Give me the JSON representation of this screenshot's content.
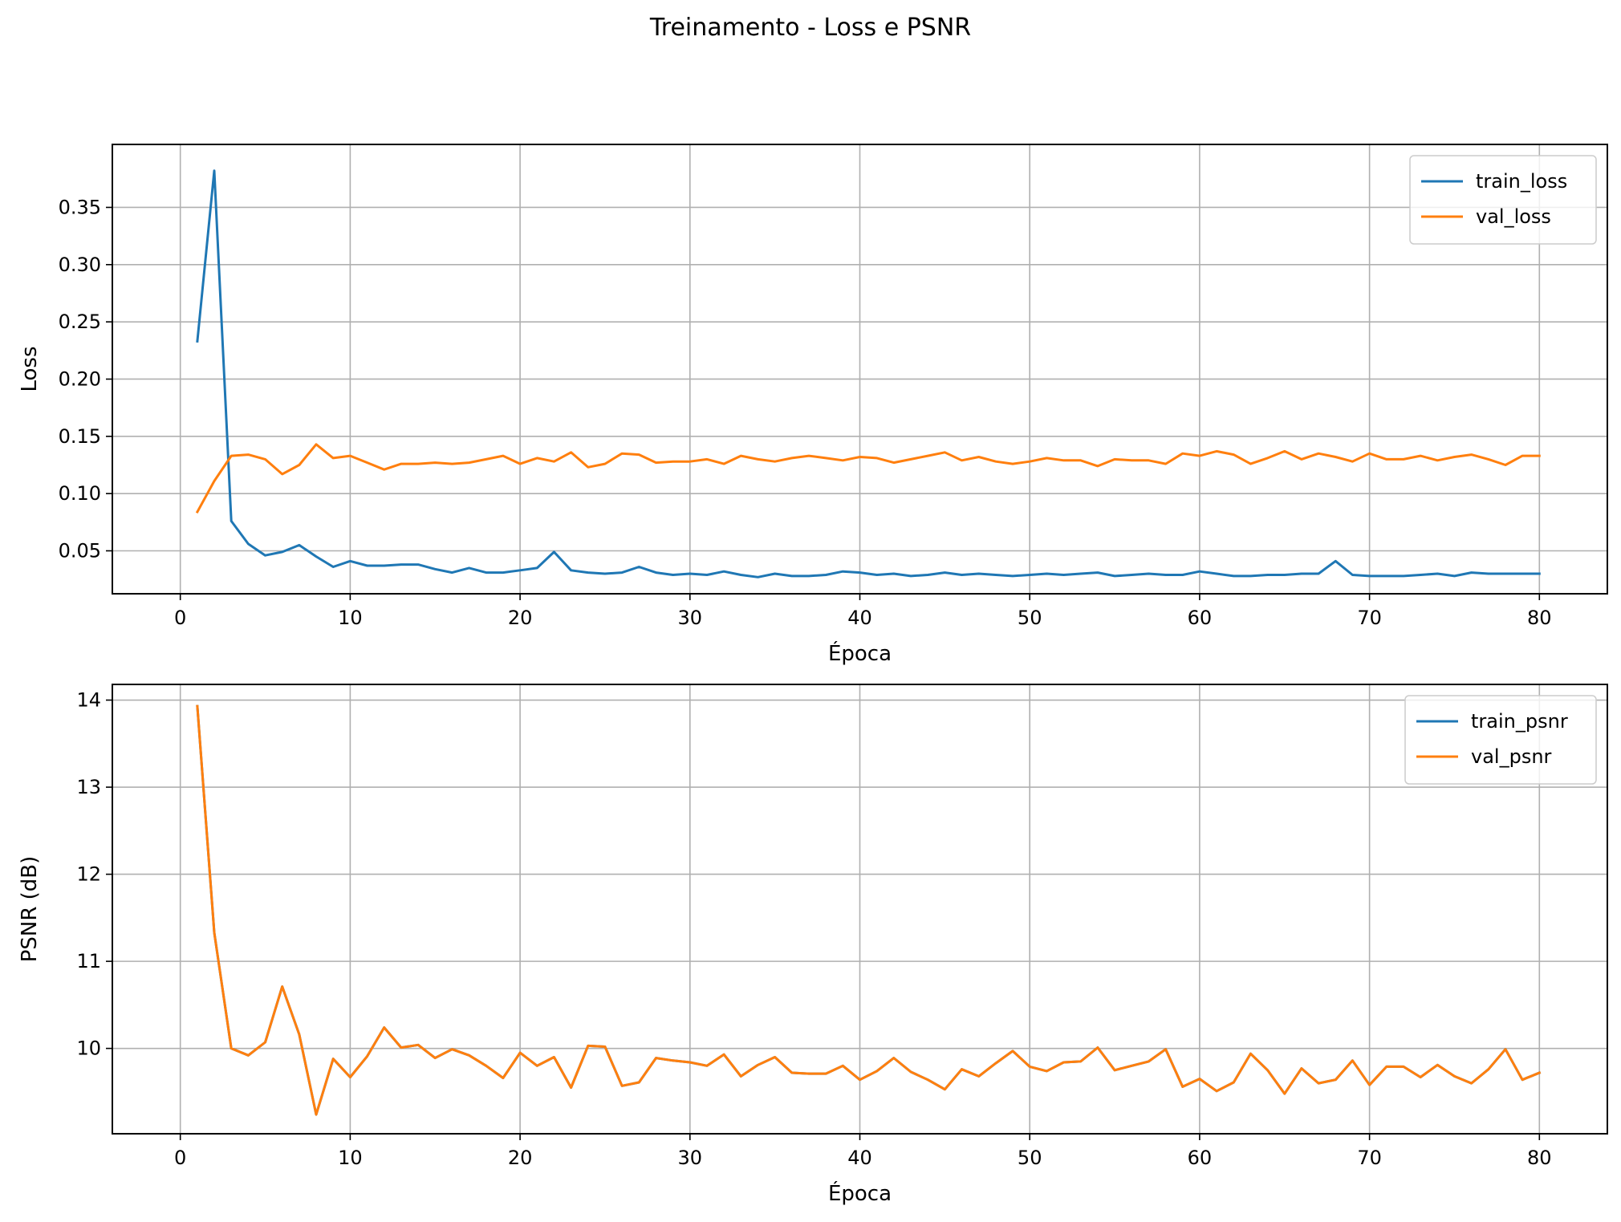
{
  "figure": {
    "title": "Treinamento - Loss e PSNR"
  },
  "colors": {
    "train": "#1f77b4",
    "val": "#ff7f0e"
  },
  "chart_data": [
    {
      "type": "line",
      "xlabel": "Época",
      "ylabel": "Loss",
      "xlim": [
        -4,
        84
      ],
      "ylim": [
        0.0125,
        0.405
      ],
      "xticks": [
        0,
        10,
        20,
        30,
        40,
        50,
        60,
        70,
        80
      ],
      "yticks": [
        0.05,
        0.1,
        0.15,
        0.2,
        0.25,
        0.3,
        0.35
      ],
      "ytick_labels": [
        "0.05",
        "0.10",
        "0.15",
        "0.20",
        "0.25",
        "0.30",
        "0.35"
      ],
      "grid": true,
      "legend": "top-right",
      "x": [
        1,
        2,
        3,
        4,
        5,
        6,
        7,
        8,
        9,
        10,
        11,
        12,
        13,
        14,
        15,
        16,
        17,
        18,
        19,
        20,
        21,
        22,
        23,
        24,
        25,
        26,
        27,
        28,
        29,
        30,
        31,
        32,
        33,
        34,
        35,
        36,
        37,
        38,
        39,
        40,
        41,
        42,
        43,
        44,
        45,
        46,
        47,
        48,
        49,
        50,
        51,
        52,
        53,
        54,
        55,
        56,
        57,
        58,
        59,
        60,
        61,
        62,
        63,
        64,
        65,
        66,
        67,
        68,
        69,
        70,
        71,
        72,
        73,
        74,
        75,
        76,
        77,
        78,
        79,
        80
      ],
      "series": [
        {
          "name": "train_loss",
          "color": "#1f77b4",
          "values": [
            0.233,
            0.382,
            0.076,
            0.056,
            0.046,
            0.049,
            0.055,
            0.045,
            0.036,
            0.041,
            0.037,
            0.037,
            0.038,
            0.038,
            0.034,
            0.031,
            0.035,
            0.031,
            0.031,
            0.033,
            0.035,
            0.049,
            0.033,
            0.031,
            0.03,
            0.031,
            0.036,
            0.031,
            0.029,
            0.03,
            0.029,
            0.032,
            0.029,
            0.027,
            0.03,
            0.028,
            0.028,
            0.029,
            0.032,
            0.031,
            0.029,
            0.03,
            0.028,
            0.029,
            0.031,
            0.029,
            0.03,
            0.029,
            0.028,
            0.029,
            0.03,
            0.029,
            0.03,
            0.031,
            0.028,
            0.029,
            0.03,
            0.029,
            0.029,
            0.032,
            0.03,
            0.028,
            0.028,
            0.029,
            0.029,
            0.03,
            0.03,
            0.041,
            0.029,
            0.028,
            0.028,
            0.028,
            0.029,
            0.03,
            0.028,
            0.031,
            0.03,
            0.03,
            0.03,
            0.03
          ]
        },
        {
          "name": "val_loss",
          "color": "#ff7f0e",
          "values": [
            0.084,
            0.111,
            0.133,
            0.134,
            0.13,
            0.117,
            0.125,
            0.143,
            0.131,
            0.133,
            0.127,
            0.121,
            0.126,
            0.126,
            0.127,
            0.126,
            0.127,
            0.13,
            0.133,
            0.126,
            0.131,
            0.128,
            0.136,
            0.123,
            0.126,
            0.135,
            0.134,
            0.127,
            0.128,
            0.128,
            0.13,
            0.126,
            0.133,
            0.13,
            0.128,
            0.131,
            0.133,
            0.131,
            0.129,
            0.132,
            0.131,
            0.127,
            0.13,
            0.133,
            0.136,
            0.129,
            0.132,
            0.128,
            0.126,
            0.128,
            0.131,
            0.129,
            0.129,
            0.124,
            0.13,
            0.129,
            0.129,
            0.126,
            0.135,
            0.133,
            0.137,
            0.134,
            0.126,
            0.131,
            0.137,
            0.13,
            0.135,
            0.132,
            0.128,
            0.135,
            0.13,
            0.13,
            0.133,
            0.129,
            0.132,
            0.134,
            0.13,
            0.125,
            0.133,
            0.133
          ]
        }
      ]
    },
    {
      "type": "line",
      "xlabel": "Época",
      "ylabel": "PSNR (dB)",
      "xlim": [
        -4,
        84
      ],
      "ylim": [
        9.02,
        14.18
      ],
      "xticks": [
        0,
        10,
        20,
        30,
        40,
        50,
        60,
        70,
        80
      ],
      "yticks": [
        10,
        11,
        12,
        13,
        14
      ],
      "ytick_labels": [
        "10",
        "11",
        "12",
        "13",
        "14"
      ],
      "grid": true,
      "legend": "top-right",
      "x": [
        1,
        2,
        3,
        4,
        5,
        6,
        7,
        8,
        9,
        10,
        11,
        12,
        13,
        14,
        15,
        16,
        17,
        18,
        19,
        20,
        21,
        22,
        23,
        24,
        25,
        26,
        27,
        28,
        29,
        30,
        31,
        32,
        33,
        34,
        35,
        36,
        37,
        38,
        39,
        40,
        41,
        42,
        43,
        44,
        45,
        46,
        47,
        48,
        49,
        50,
        51,
        52,
        53,
        54,
        55,
        56,
        57,
        58,
        59,
        60,
        61,
        62,
        63,
        64,
        65,
        66,
        67,
        68,
        69,
        70,
        71,
        72,
        73,
        74,
        75,
        76,
        77,
        78,
        79,
        80
      ],
      "series": [
        {
          "name": "train_psnr",
          "color": "#1f77b4",
          "values": [
            13.93,
            11.33,
            10.0,
            9.92,
            10.07,
            10.71,
            10.16,
            9.24,
            9.88,
            9.67,
            9.91,
            10.24,
            10.01,
            10.04,
            9.89,
            9.99,
            9.92,
            9.8,
            9.66,
            9.95,
            9.8,
            9.9,
            9.55,
            10.03,
            10.02,
            9.57,
            9.61,
            9.89,
            9.86,
            9.84,
            9.8,
            9.93,
            9.68,
            9.81,
            9.9,
            9.72,
            9.71,
            9.71,
            9.8,
            9.64,
            9.74,
            9.89,
            9.73,
            9.64,
            9.53,
            9.76,
            9.68,
            9.83,
            9.97,
            9.79,
            9.74,
            9.84,
            9.85,
            10.01,
            9.75,
            9.8,
            9.85,
            9.99,
            9.56,
            9.65,
            9.51,
            9.61,
            9.94,
            9.75,
            9.48,
            9.77,
            9.6,
            9.64,
            9.86,
            9.58,
            9.79,
            9.79,
            9.67,
            9.81,
            9.68,
            9.6,
            9.76,
            9.99,
            9.64,
            9.72
          ]
        },
        {
          "name": "val_psnr",
          "color": "#ff7f0e",
          "values": [
            13.93,
            11.33,
            10.0,
            9.92,
            10.07,
            10.71,
            10.16,
            9.24,
            9.88,
            9.67,
            9.91,
            10.24,
            10.01,
            10.04,
            9.89,
            9.99,
            9.92,
            9.8,
            9.66,
            9.95,
            9.8,
            9.9,
            9.55,
            10.03,
            10.02,
            9.57,
            9.61,
            9.89,
            9.86,
            9.84,
            9.8,
            9.93,
            9.68,
            9.81,
            9.9,
            9.72,
            9.71,
            9.71,
            9.8,
            9.64,
            9.74,
            9.89,
            9.73,
            9.64,
            9.53,
            9.76,
            9.68,
            9.83,
            9.97,
            9.79,
            9.74,
            9.84,
            9.85,
            10.01,
            9.75,
            9.8,
            9.85,
            9.99,
            9.56,
            9.65,
            9.51,
            9.61,
            9.94,
            9.75,
            9.48,
            9.77,
            9.6,
            9.64,
            9.86,
            9.58,
            9.79,
            9.79,
            9.67,
            9.81,
            9.68,
            9.6,
            9.76,
            9.99,
            9.64,
            9.72
          ]
        }
      ]
    }
  ]
}
